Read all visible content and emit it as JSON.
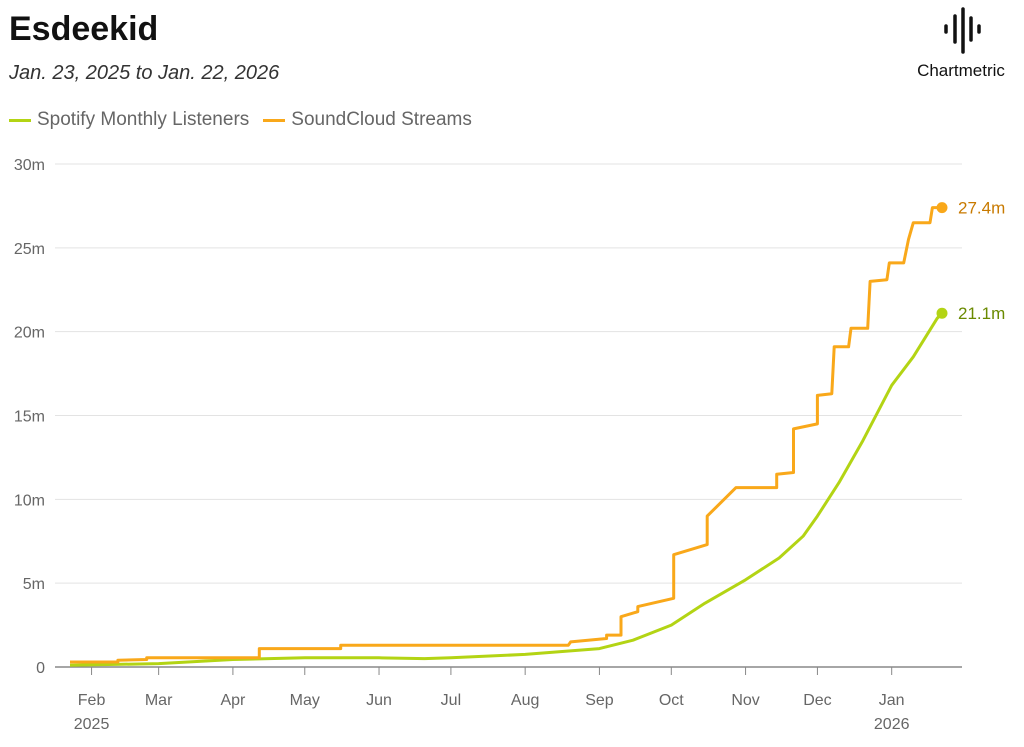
{
  "title": "Esdeekid",
  "subtitle": "Jan. 23, 2025 to Jan. 22, 2026",
  "logo": {
    "text": "Chartmetric"
  },
  "chart_data": {
    "type": "line",
    "title": "Esdeekid",
    "xlim": [
      "2025-01-23",
      "2026-01-22"
    ],
    "ylim": [
      0,
      30
    ],
    "y_ticks": [
      {
        "v": 0,
        "label": "0"
      },
      {
        "v": 5,
        "label": "5m"
      },
      {
        "v": 10,
        "label": "10m"
      },
      {
        "v": 15,
        "label": "15m"
      },
      {
        "v": 20,
        "label": "20m"
      },
      {
        "v": 25,
        "label": "25m"
      },
      {
        "v": 30,
        "label": "30m"
      }
    ],
    "x_ticks": [
      {
        "d": "2025-02-01",
        "label": "Feb",
        "year": "2025"
      },
      {
        "d": "2025-03-01",
        "label": "Mar"
      },
      {
        "d": "2025-04-01",
        "label": "Apr"
      },
      {
        "d": "2025-05-01",
        "label": "May"
      },
      {
        "d": "2025-06-01",
        "label": "Jun"
      },
      {
        "d": "2025-07-01",
        "label": "Jul"
      },
      {
        "d": "2025-08-01",
        "label": "Aug"
      },
      {
        "d": "2025-09-01",
        "label": "Sep"
      },
      {
        "d": "2025-10-01",
        "label": "Oct"
      },
      {
        "d": "2025-11-01",
        "label": "Nov"
      },
      {
        "d": "2025-12-01",
        "label": "Dec"
      },
      {
        "d": "2026-01-01",
        "label": "Jan",
        "year": "2026"
      }
    ],
    "grid": true,
    "legend_position": "top-left",
    "series": [
      {
        "name": "Spotify Monthly Listeners",
        "color": "#b3d414",
        "label_color": "#6a8a00",
        "end_label": "21.1m",
        "points": [
          [
            "2025-01-23",
            0.1
          ],
          [
            "2025-03-01",
            0.2
          ],
          [
            "2025-04-01",
            0.45
          ],
          [
            "2025-05-01",
            0.55
          ],
          [
            "2025-06-01",
            0.55
          ],
          [
            "2025-06-20",
            0.5
          ],
          [
            "2025-07-01",
            0.55
          ],
          [
            "2025-08-01",
            0.75
          ],
          [
            "2025-09-01",
            1.1
          ],
          [
            "2025-09-15",
            1.6
          ],
          [
            "2025-10-01",
            2.5
          ],
          [
            "2025-10-15",
            3.8
          ],
          [
            "2025-11-01",
            5.2
          ],
          [
            "2025-11-15",
            6.5
          ],
          [
            "2025-11-25",
            7.8
          ],
          [
            "2025-12-01",
            9.0
          ],
          [
            "2025-12-10",
            11.0
          ],
          [
            "2025-12-20",
            13.5
          ],
          [
            "2026-01-01",
            16.8
          ],
          [
            "2026-01-10",
            18.5
          ],
          [
            "2026-01-20",
            20.8
          ],
          [
            "2026-01-22",
            21.1
          ]
        ]
      },
      {
        "name": "SoundCloud Streams",
        "color": "#f9a81a",
        "label_color": "#c87a00",
        "end_label": "27.4m",
        "points": [
          [
            "2025-01-23",
            0.3
          ],
          [
            "2025-02-12",
            0.3
          ],
          [
            "2025-02-12",
            0.4
          ],
          [
            "2025-02-24",
            0.45
          ],
          [
            "2025-02-24",
            0.55
          ],
          [
            "2025-04-12",
            0.55
          ],
          [
            "2025-04-12",
            1.1
          ],
          [
            "2025-05-16",
            1.1
          ],
          [
            "2025-05-16",
            1.3
          ],
          [
            "2025-08-19",
            1.3
          ],
          [
            "2025-08-20",
            1.5
          ],
          [
            "2025-09-04",
            1.7
          ],
          [
            "2025-09-04",
            1.9
          ],
          [
            "2025-09-10",
            1.9
          ],
          [
            "2025-09-10",
            3.0
          ],
          [
            "2025-09-17",
            3.3
          ],
          [
            "2025-09-17",
            3.6
          ],
          [
            "2025-10-02",
            4.1
          ],
          [
            "2025-10-02",
            6.7
          ],
          [
            "2025-10-16",
            7.3
          ],
          [
            "2025-10-16",
            9.0
          ],
          [
            "2025-10-28",
            10.7
          ],
          [
            "2025-11-14",
            10.7
          ],
          [
            "2025-11-14",
            11.5
          ],
          [
            "2025-11-21",
            11.6
          ],
          [
            "2025-11-21",
            14.2
          ],
          [
            "2025-12-01",
            14.5
          ],
          [
            "2025-12-01",
            16.2
          ],
          [
            "2025-12-07",
            16.3
          ],
          [
            "2025-12-08",
            19.1
          ],
          [
            "2025-12-14",
            19.1
          ],
          [
            "2025-12-15",
            20.2
          ],
          [
            "2025-12-22",
            20.2
          ],
          [
            "2025-12-23",
            23.0
          ],
          [
            "2025-12-30",
            23.1
          ],
          [
            "2025-12-31",
            24.1
          ],
          [
            "2026-01-06",
            24.1
          ],
          [
            "2026-01-08",
            25.5
          ],
          [
            "2026-01-10",
            26.5
          ],
          [
            "2026-01-17",
            26.5
          ],
          [
            "2026-01-18",
            27.4
          ],
          [
            "2026-01-22",
            27.4
          ]
        ]
      }
    ]
  }
}
